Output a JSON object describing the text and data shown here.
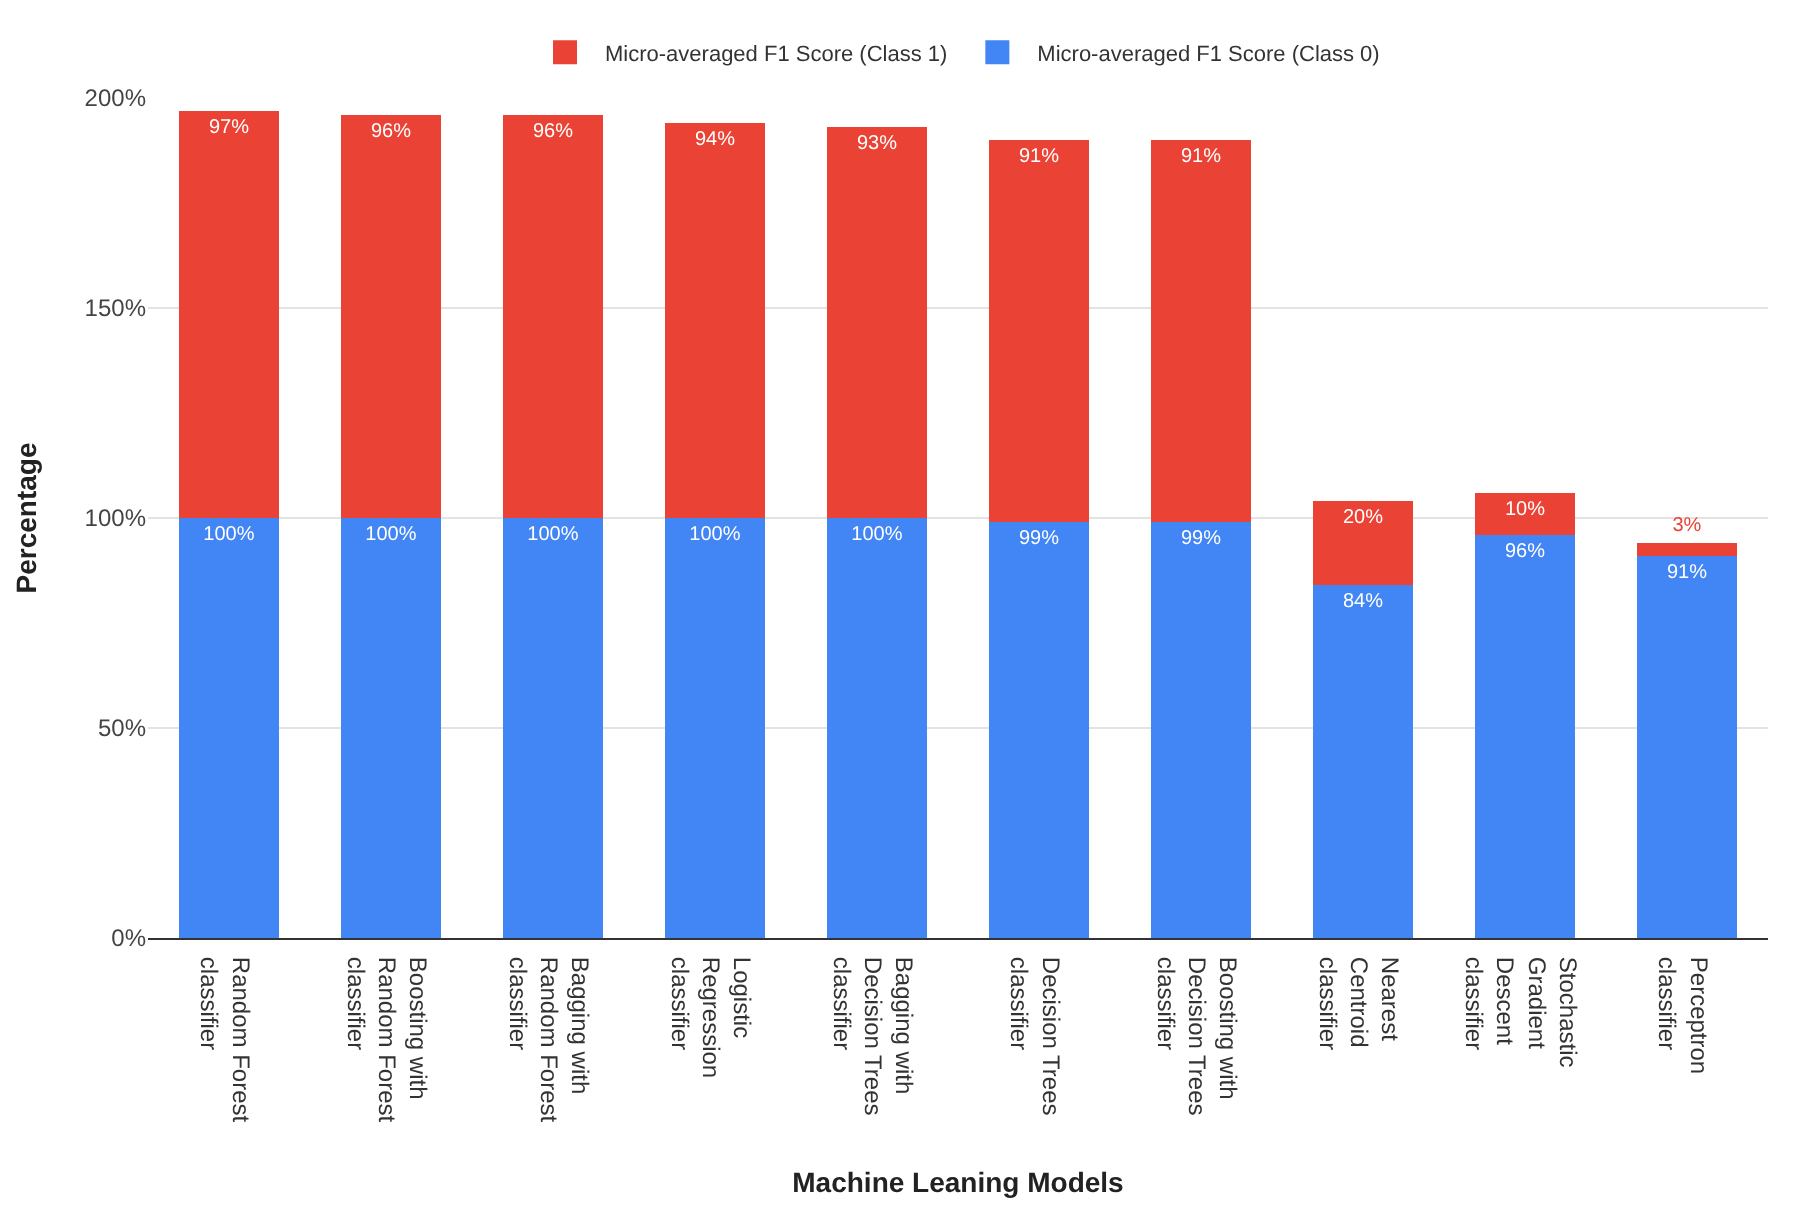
{
  "chart_data": {
    "type": "bar",
    "stacked": true,
    "xlabel": "Machine Leaning Models",
    "ylabel": "Percentage",
    "categories": [
      "Random Forest classifier",
      "Boosting with Random Forest classifier",
      "Bagging with Random Forest classifier",
      "Logistic Regression classifier",
      "Bagging with Decision Trees classifier",
      "Decision Trees classifier",
      "Boosting with Decision Trees classifier",
      "Nearest Centroid classifier",
      "Stochastic Gradient Descent classifier",
      "Perceptron classifier"
    ],
    "series": [
      {
        "name": "Micro-averaged F1 Score (Class 0)",
        "color": "#4285f4",
        "values": [
          100,
          100,
          100,
          100,
          100,
          99,
          99,
          84,
          96,
          91
        ],
        "value_labels": [
          "100%",
          "100%",
          "100%",
          "100%",
          "100%",
          "99%",
          "99%",
          "84%",
          "96%",
          "91%"
        ]
      },
      {
        "name": "Micro-averaged F1 Score (Class 1)",
        "color": "#ea4335",
        "values": [
          97,
          96,
          96,
          94,
          93,
          91,
          91,
          20,
          10,
          3
        ],
        "value_labels": [
          "97%",
          "96%",
          "96%",
          "94%",
          "93%",
          "91%",
          "91%",
          "20%",
          "10%",
          "3%"
        ]
      }
    ],
    "ylim": [
      0,
      200
    ],
    "yticks": [
      {
        "value": 0,
        "label": "0%"
      },
      {
        "value": 50,
        "label": "50%"
      },
      {
        "value": 100,
        "label": "100%"
      },
      {
        "value": 150,
        "label": "150%"
      },
      {
        "value": 200,
        "label": "200%"
      }
    ],
    "grid": "y",
    "legend": "top"
  }
}
